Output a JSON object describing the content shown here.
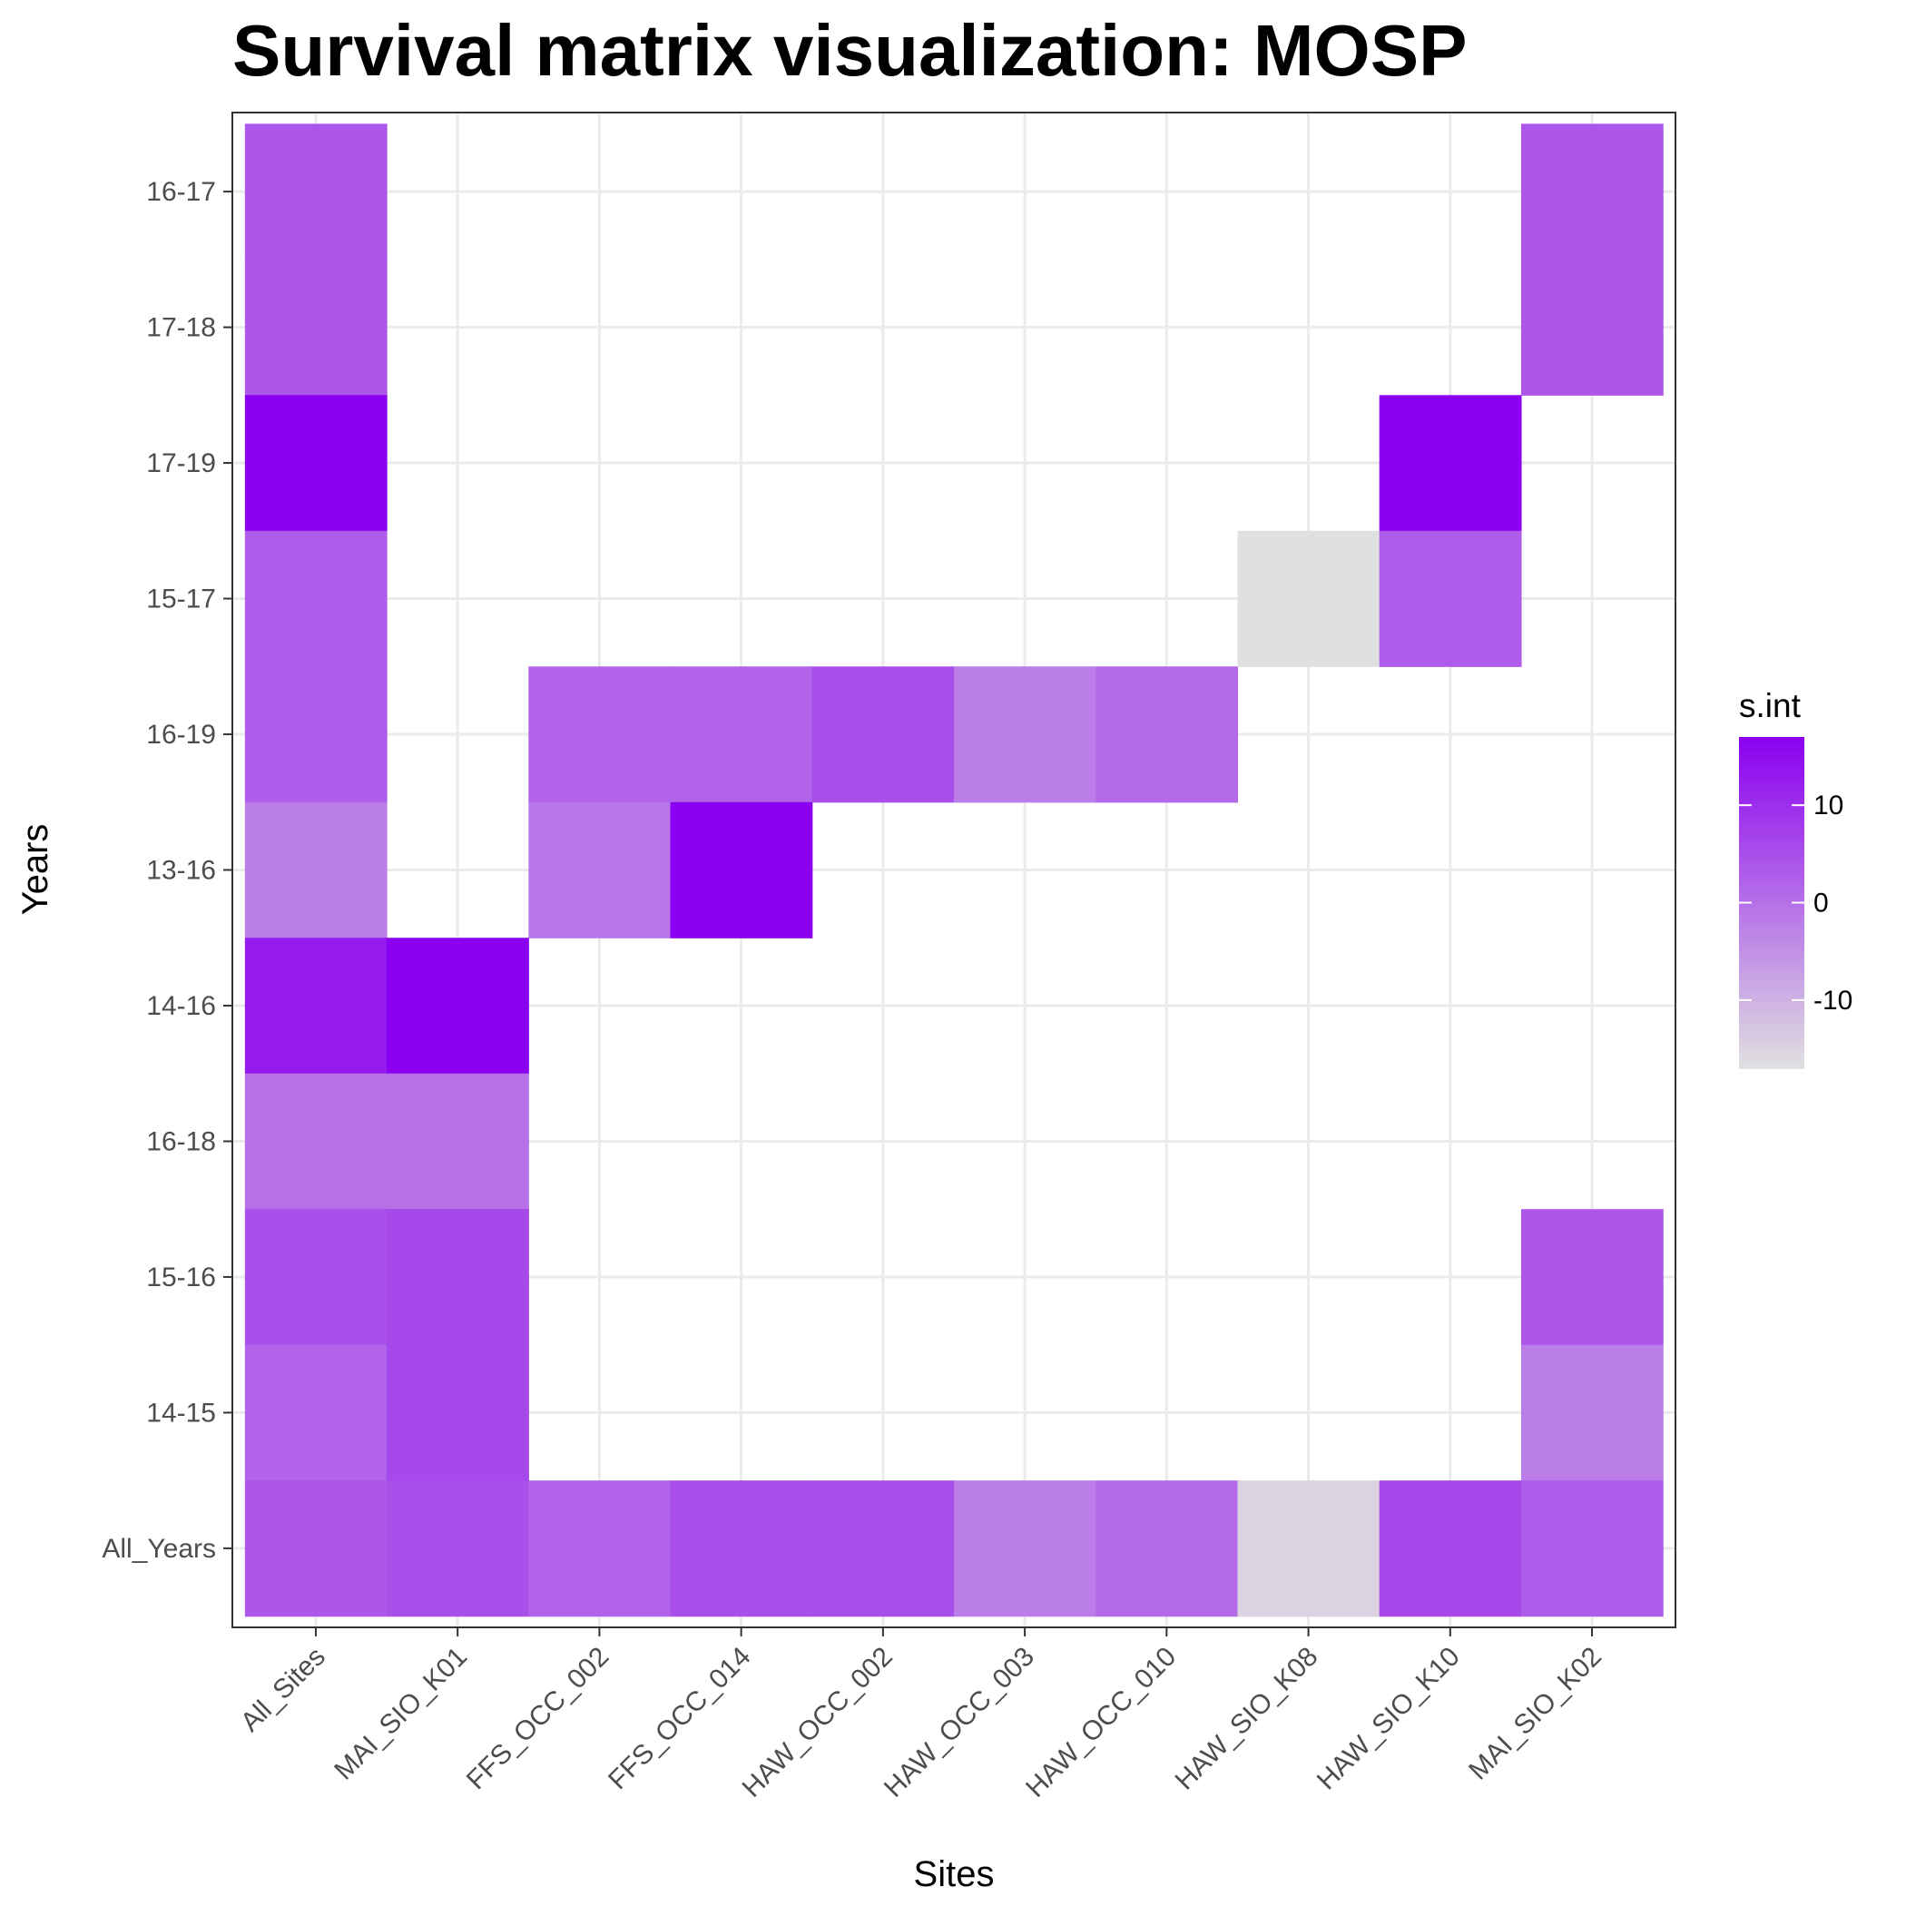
{
  "chart_data": {
    "type": "heatmap",
    "title": "Survival matrix visualization: MOSP",
    "xlabel": "Sites",
    "ylabel": "Years",
    "x_categories": [
      "All_Sites",
      "MAI_SIO_K01",
      "FFS_OCC_002",
      "FFS_OCC_014",
      "HAW_OCC_002",
      "HAW_OCC_003",
      "HAW_OCC_010",
      "HAW_SIO_K08",
      "HAW_SIO_K10",
      "MAI_SIO_K02"
    ],
    "y_categories": [
      "16-17",
      "17-18",
      "17-19",
      "15-17",
      "16-19",
      "13-16",
      "14-16",
      "16-18",
      "15-16",
      "14-15",
      "All_Years"
    ],
    "cells": [
      {
        "x": "All_Sites",
        "y": "16-17",
        "value": 4
      },
      {
        "x": "All_Sites",
        "y": "17-18",
        "value": 4
      },
      {
        "x": "All_Sites",
        "y": "17-19",
        "value": 17
      },
      {
        "x": "All_Sites",
        "y": "15-17",
        "value": 3
      },
      {
        "x": "All_Sites",
        "y": "16-19",
        "value": 3
      },
      {
        "x": "All_Sites",
        "y": "13-16",
        "value": -2
      },
      {
        "x": "All_Sites",
        "y": "14-16",
        "value": 13
      },
      {
        "x": "All_Sites",
        "y": "16-18",
        "value": 0
      },
      {
        "x": "All_Sites",
        "y": "15-16",
        "value": 5
      },
      {
        "x": "All_Sites",
        "y": "14-15",
        "value": 2
      },
      {
        "x": "All_Sites",
        "y": "All_Years",
        "value": 4
      },
      {
        "x": "MAI_SIO_K01",
        "y": "14-16",
        "value": 17
      },
      {
        "x": "MAI_SIO_K01",
        "y": "16-18",
        "value": 0
      },
      {
        "x": "MAI_SIO_K01",
        "y": "15-16",
        "value": 6
      },
      {
        "x": "MAI_SIO_K01",
        "y": "14-15",
        "value": 6
      },
      {
        "x": "MAI_SIO_K01",
        "y": "All_Years",
        "value": 5
      },
      {
        "x": "FFS_OCC_002",
        "y": "16-19",
        "value": 2
      },
      {
        "x": "FFS_OCC_002",
        "y": "13-16",
        "value": -1
      },
      {
        "x": "FFS_OCC_002",
        "y": "All_Years",
        "value": 2
      },
      {
        "x": "FFS_OCC_014",
        "y": "16-19",
        "value": 2
      },
      {
        "x": "FFS_OCC_014",
        "y": "13-16",
        "value": 17
      },
      {
        "x": "FFS_OCC_014",
        "y": "All_Years",
        "value": 5
      },
      {
        "x": "HAW_OCC_002",
        "y": "16-19",
        "value": 5
      },
      {
        "x": "HAW_OCC_002",
        "y": "All_Years",
        "value": 5
      },
      {
        "x": "HAW_OCC_003",
        "y": "16-19",
        "value": -2
      },
      {
        "x": "HAW_OCC_003",
        "y": "All_Years",
        "value": -2
      },
      {
        "x": "HAW_OCC_010",
        "y": "16-19",
        "value": 1
      },
      {
        "x": "HAW_OCC_010",
        "y": "All_Years",
        "value": 1
      },
      {
        "x": "HAW_SIO_K08",
        "y": "15-17",
        "value": -17
      },
      {
        "x": "HAW_SIO_K08",
        "y": "All_Years",
        "value": -15
      },
      {
        "x": "HAW_SIO_K10",
        "y": "17-19",
        "value": 17
      },
      {
        "x": "HAW_SIO_K10",
        "y": "15-17",
        "value": 3
      },
      {
        "x": "HAW_SIO_K10",
        "y": "All_Years",
        "value": 6
      },
      {
        "x": "MAI_SIO_K02",
        "y": "16-17",
        "value": 4
      },
      {
        "x": "MAI_SIO_K02",
        "y": "17-18",
        "value": 4
      },
      {
        "x": "MAI_SIO_K02",
        "y": "15-16",
        "value": 4
      },
      {
        "x": "MAI_SIO_K02",
        "y": "14-15",
        "value": -2
      },
      {
        "x": "MAI_SIO_K02",
        "y": "All_Years",
        "value": 3
      }
    ],
    "legend": {
      "title": "s.int",
      "placement": "right",
      "range": [
        -17,
        17
      ],
      "ticks": [
        10,
        0,
        -10
      ],
      "low_color": "#e0e0e0",
      "high_color": "#8b00f0"
    },
    "grid": true
  }
}
